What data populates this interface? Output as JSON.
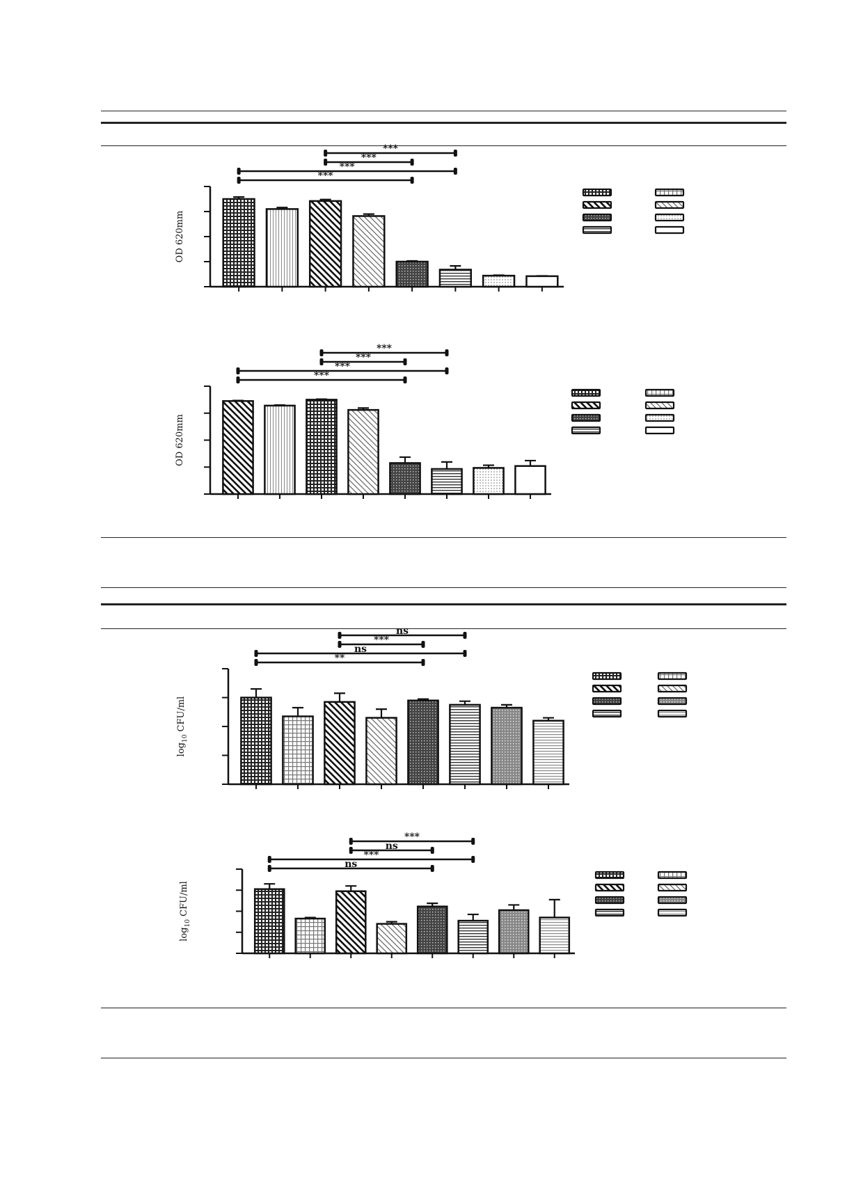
{
  "chart_data": [
    {
      "type": "bar",
      "title": "",
      "ylabel": "OD 620mm",
      "ylabel_sub": "",
      "ylim": [
        0,
        4
      ],
      "y_ticks": 4,
      "values": [
        3.5,
        3.1,
        3.42,
        2.82,
        1.0,
        0.68,
        0.44,
        0.42
      ],
      "errors": [
        0.08,
        0.06,
        0.06,
        0.08,
        0.03,
        0.15,
        0.02,
        0.01
      ],
      "patterns": [
        "grid-dark",
        "vlines",
        "diag-dark",
        "diag-light",
        "cross-dark",
        "hlines",
        "dots",
        "blank"
      ],
      "legend_patterns": [
        "grid-dark",
        "grid-light",
        "diag-dark",
        "diag-light",
        "cross-dark",
        "dots",
        "hlines",
        "blank"
      ],
      "significance": [
        {
          "from": 3,
          "to": 6,
          "label": "***"
        },
        {
          "from": 3,
          "to": 5,
          "label": "***"
        },
        {
          "from": 1,
          "to": 6,
          "label": "***"
        },
        {
          "from": 1,
          "to": 5,
          "label": "***"
        }
      ]
    },
    {
      "type": "bar",
      "title": "",
      "ylabel": "OD 620mm",
      "ylabel_sub": "",
      "ylim": [
        0,
        4
      ],
      "y_ticks": 4,
      "values": [
        3.45,
        3.28,
        3.5,
        3.12,
        1.15,
        0.93,
        0.97,
        1.04
      ],
      "errors": [
        0.02,
        0.02,
        0.02,
        0.07,
        0.22,
        0.26,
        0.1,
        0.2
      ],
      "patterns": [
        "diag-dark",
        "vlines",
        "grid-dark",
        "diag-light",
        "cross-dark",
        "hlines",
        "dots",
        "blank"
      ],
      "legend_patterns": [
        "grid-dark",
        "grid-light",
        "diag-dark",
        "diag-light",
        "cross-dark",
        "dots",
        "hlines",
        "blank"
      ],
      "significance": [
        {
          "from": 3,
          "to": 6,
          "label": "***"
        },
        {
          "from": 3,
          "to": 5,
          "label": "***"
        },
        {
          "from": 1,
          "to": 6,
          "label": "***"
        },
        {
          "from": 1,
          "to": 5,
          "label": "***"
        }
      ]
    },
    {
      "type": "bar",
      "title": "",
      "ylabel": "log",
      "ylabel_sub": "10",
      "ylabel_rest": " CFU/ml",
      "ylim": [
        0,
        8
      ],
      "y_ticks": 4,
      "values": [
        6.0,
        4.7,
        5.7,
        4.6,
        5.8,
        5.5,
        5.3,
        4.4
      ],
      "errors": [
        0.6,
        0.6,
        0.6,
        0.6,
        0.1,
        0.25,
        0.2,
        0.2
      ],
      "patterns": [
        "grid-dark",
        "grid-light",
        "diag-dark",
        "diag-light",
        "cross-dark",
        "hlines",
        "cross-light",
        "hlines-light"
      ],
      "legend_patterns": [
        "grid-dark",
        "grid-light",
        "diag-dark",
        "diag-light",
        "cross-dark",
        "cross-light",
        "hlines",
        "hlines-light"
      ],
      "significance": [
        {
          "from": 3,
          "to": 6,
          "label": "ns"
        },
        {
          "from": 3,
          "to": 5,
          "label": "***"
        },
        {
          "from": 1,
          "to": 6,
          "label": "ns"
        },
        {
          "from": 1,
          "to": 5,
          "label": "**"
        }
      ]
    },
    {
      "type": "bar",
      "title": "",
      "ylabel": "log",
      "ylabel_sub": "10",
      "ylabel_rest": " CFU/ml",
      "ylim": [
        0,
        8
      ],
      "y_ticks": 4,
      "values": [
        6.1,
        3.3,
        5.9,
        2.8,
        4.45,
        3.1,
        4.1,
        3.4
      ],
      "errors": [
        0.5,
        0.1,
        0.5,
        0.2,
        0.3,
        0.6,
        0.5,
        1.7
      ],
      "patterns": [
        "grid-dark",
        "grid-light",
        "diag-dark",
        "diag-light",
        "cross-dark",
        "hlines",
        "cross-light",
        "hlines-light"
      ],
      "legend_patterns": [
        "grid-dark",
        "grid-light",
        "diag-dark",
        "diag-light",
        "cross-dark",
        "cross-light",
        "hlines",
        "hlines-light"
      ],
      "significance": [
        {
          "from": 3,
          "to": 6,
          "label": "***"
        },
        {
          "from": 3,
          "to": 5,
          "label": "ns"
        },
        {
          "from": 1,
          "to": 6,
          "label": "***"
        },
        {
          "from": 1,
          "to": 5,
          "label": "ns"
        }
      ]
    }
  ]
}
